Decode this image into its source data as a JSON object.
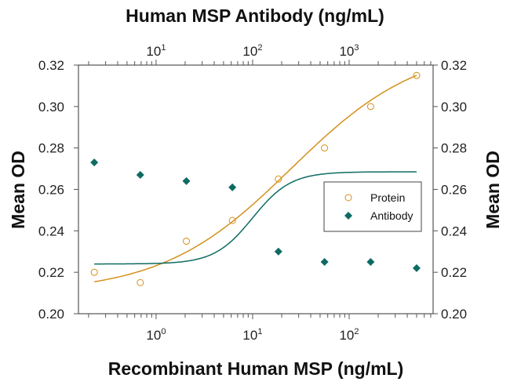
{
  "chart_data": {
    "type": "scatter",
    "title": "Human MSP Antibody (ng/mL)",
    "xlabel": "Recombinant Human MSP (ng/mL)",
    "ylabel": "Mean OD",
    "ylabel_right": "Mean OD",
    "x_scale": "log",
    "xlim": [
      0.157,
      741
    ],
    "x_ticks": [
      {
        "label": "10",
        "exp": "0"
      },
      {
        "label": "10",
        "exp": "1"
      },
      {
        "label": "10",
        "exp": "2"
      }
    ],
    "x_tick_values": [
      1,
      10,
      100
    ],
    "top_axis": {
      "label": "Human MSP Antibody (ng/mL)",
      "scale": "log",
      "xlim": [
        1.57,
        7410
      ],
      "ticks": [
        {
          "label": "10",
          "exp": "1"
        },
        {
          "label": "10",
          "exp": "2"
        },
        {
          "label": "10",
          "exp": "3"
        }
      ],
      "tick_values": [
        10,
        100,
        1000
      ]
    },
    "ylim": [
      0.2,
      0.32
    ],
    "y_ticks": [
      "0.20",
      "0.22",
      "0.24",
      "0.26",
      "0.28",
      "0.30",
      "0.32"
    ],
    "grid": false,
    "legend_placement": "right",
    "series": [
      {
        "name": "Protein",
        "marker": "open-circle",
        "color": "#d4901c",
        "x": [
          0.229,
          0.686,
          2.06,
          6.17,
          18.5,
          55.6,
          167,
          500
        ],
        "y": [
          0.22,
          0.215,
          0.235,
          0.245,
          0.265,
          0.28,
          0.3,
          0.315
        ]
      },
      {
        "name": "Antibody",
        "marker": "filled-diamond",
        "color": "#0e6b62",
        "x": [
          0.229,
          0.686,
          2.06,
          6.17,
          18.5,
          55.6,
          167,
          500
        ],
        "y": [
          0.273,
          0.267,
          0.264,
          0.261,
          0.23,
          0.225,
          0.225,
          0.222
        ]
      }
    ]
  }
}
